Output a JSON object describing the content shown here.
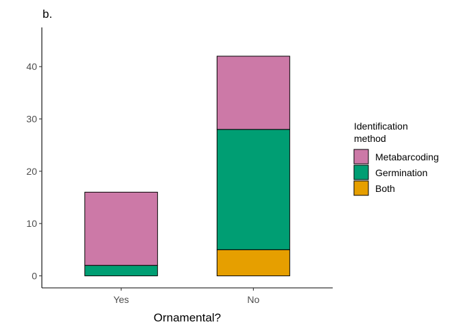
{
  "chart_data": {
    "type": "bar",
    "stacked": true,
    "tag": "b.",
    "xlabel": "Ornamental?",
    "ylabel": "",
    "categories": [
      "Yes",
      "No"
    ],
    "ylim": [
      -2.3,
      47.5
    ],
    "yticks": [
      0,
      10,
      20,
      30,
      40
    ],
    "grid": false,
    "legend": {
      "title_lines": [
        "Identification",
        "method"
      ],
      "placement": "right"
    },
    "series": [
      {
        "name": "Both",
        "color": "#E69F00",
        "values": [
          0,
          5
        ]
      },
      {
        "name": "Germination",
        "color": "#009E73",
        "values": [
          2,
          23
        ]
      },
      {
        "name": "Metabarcoding",
        "color": "#CC79A7",
        "values": [
          14,
          14
        ]
      }
    ],
    "legend_order": [
      "Metabarcoding",
      "Germination",
      "Both"
    ]
  }
}
